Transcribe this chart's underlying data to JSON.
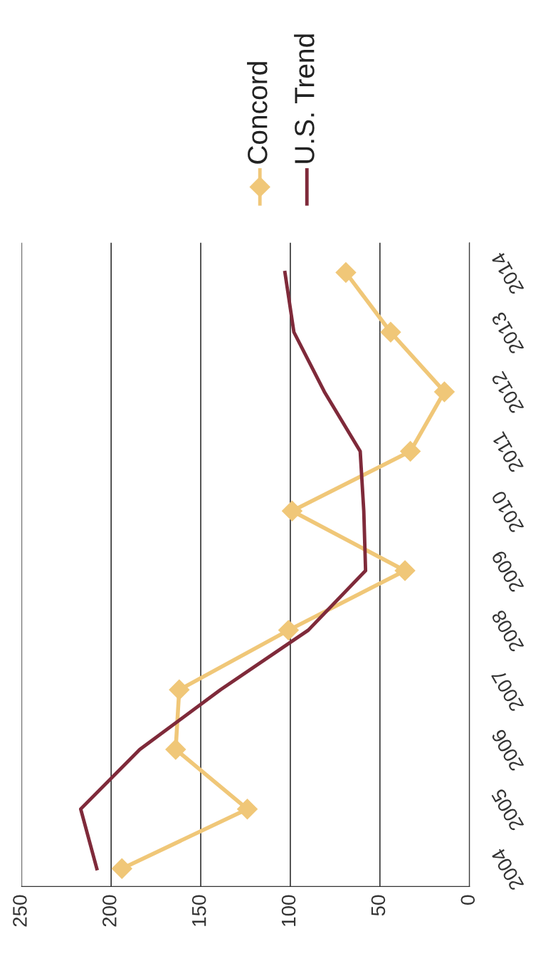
{
  "chart_data": {
    "type": "line",
    "orientation": "horizontal",
    "categories": [
      "2014",
      "2013",
      "2012",
      "2011",
      "2010",
      "2009",
      "2008",
      "2007",
      "2006",
      "2005",
      "2004"
    ],
    "series": [
      {
        "name": "Concord",
        "color": "#f0c778",
        "marker": "diamond",
        "values": [
          69,
          44,
          14,
          33,
          99,
          36,
          101,
          162,
          164,
          124,
          194
        ]
      },
      {
        "name": "U.S. Trend",
        "color": "#7f2a3a",
        "marker": "none",
        "values": [
          103,
          98,
          81,
          61,
          59,
          58,
          90,
          139,
          184,
          217,
          208
        ]
      }
    ],
    "xlim": [
      250,
      0
    ],
    "xticks": [
      250,
      200,
      150,
      100,
      50,
      0
    ],
    "grid": "x",
    "legend": "top",
    "line_style": "solid"
  }
}
